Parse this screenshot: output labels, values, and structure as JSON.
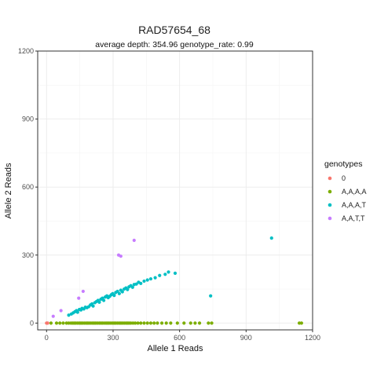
{
  "chart_data": {
    "type": "scatter",
    "title": "RAD57654_68",
    "subtitle": "average depth:  354.96  genotype_rate:  0.99",
    "xlabel": "Allele 1 Reads",
    "ylabel": "Allele 2 Reads",
    "xlim": [
      -40,
      1200
    ],
    "ylim": [
      -30,
      1200
    ],
    "xticks": [
      0,
      300,
      600,
      900,
      1200
    ],
    "yticks": [
      0,
      300,
      600,
      900,
      1200
    ],
    "grid": true,
    "legend": {
      "title": "genotypes",
      "position": "right"
    },
    "series": [
      {
        "name": "0",
        "color": "#F8766D",
        "points": [
          [
            0,
            0
          ],
          [
            5,
            0
          ]
        ]
      },
      {
        "name": "A,A,A,A",
        "color": "#7CAE00",
        "points": [
          [
            20,
            0
          ],
          [
            45,
            0
          ],
          [
            60,
            0
          ],
          [
            75,
            0
          ],
          [
            90,
            0
          ],
          [
            100,
            0
          ],
          [
            110,
            0
          ],
          [
            118,
            0
          ],
          [
            125,
            0
          ],
          [
            132,
            0
          ],
          [
            140,
            0
          ],
          [
            148,
            0
          ],
          [
            155,
            0
          ],
          [
            162,
            0
          ],
          [
            170,
            0
          ],
          [
            178,
            0
          ],
          [
            185,
            0
          ],
          [
            192,
            0
          ],
          [
            200,
            0
          ],
          [
            208,
            0
          ],
          [
            215,
            0
          ],
          [
            222,
            0
          ],
          [
            230,
            0
          ],
          [
            238,
            0
          ],
          [
            245,
            0
          ],
          [
            252,
            0
          ],
          [
            260,
            0
          ],
          [
            268,
            0
          ],
          [
            275,
            0
          ],
          [
            282,
            0
          ],
          [
            290,
            0
          ],
          [
            298,
            0
          ],
          [
            305,
            0
          ],
          [
            312,
            0
          ],
          [
            320,
            0
          ],
          [
            328,
            0
          ],
          [
            335,
            0
          ],
          [
            342,
            0
          ],
          [
            350,
            0
          ],
          [
            358,
            0
          ],
          [
            365,
            0
          ],
          [
            372,
            0
          ],
          [
            380,
            0
          ],
          [
            390,
            0
          ],
          [
            400,
            0
          ],
          [
            412,
            0
          ],
          [
            425,
            0
          ],
          [
            440,
            0
          ],
          [
            455,
            0
          ],
          [
            470,
            0
          ],
          [
            485,
            0
          ],
          [
            500,
            0
          ],
          [
            520,
            0
          ],
          [
            540,
            0
          ],
          [
            560,
            0
          ],
          [
            590,
            0
          ],
          [
            620,
            0
          ],
          [
            650,
            0
          ],
          [
            670,
            0
          ],
          [
            690,
            0
          ],
          [
            730,
            0
          ],
          [
            745,
            0
          ],
          [
            1140,
            0
          ],
          [
            1150,
            0
          ]
        ]
      },
      {
        "name": "A,A,A,T",
        "color": "#00BFC4",
        "points": [
          [
            100,
            35
          ],
          [
            112,
            40
          ],
          [
            120,
            45
          ],
          [
            128,
            50
          ],
          [
            135,
            55
          ],
          [
            140,
            48
          ],
          [
            148,
            60
          ],
          [
            155,
            58
          ],
          [
            160,
            65
          ],
          [
            168,
            62
          ],
          [
            175,
            70
          ],
          [
            182,
            68
          ],
          [
            190,
            72
          ],
          [
            198,
            80
          ],
          [
            205,
            85
          ],
          [
            210,
            75
          ],
          [
            218,
            90
          ],
          [
            225,
            95
          ],
          [
            232,
            100
          ],
          [
            238,
            92
          ],
          [
            245,
            105
          ],
          [
            252,
            110
          ],
          [
            258,
            100
          ],
          [
            265,
            115
          ],
          [
            272,
            120
          ],
          [
            278,
            112
          ],
          [
            285,
            118
          ],
          [
            292,
            125
          ],
          [
            298,
            130
          ],
          [
            305,
            122
          ],
          [
            312,
            135
          ],
          [
            320,
            140
          ],
          [
            328,
            130
          ],
          [
            335,
            145
          ],
          [
            342,
            138
          ],
          [
            350,
            150
          ],
          [
            358,
            155
          ],
          [
            365,
            148
          ],
          [
            372,
            160
          ],
          [
            380,
            165
          ],
          [
            388,
            158
          ],
          [
            395,
            170
          ],
          [
            405,
            172
          ],
          [
            415,
            180
          ],
          [
            425,
            175
          ],
          [
            440,
            185
          ],
          [
            455,
            190
          ],
          [
            470,
            195
          ],
          [
            490,
            200
          ],
          [
            510,
            210
          ],
          [
            535,
            215
          ],
          [
            550,
            225
          ],
          [
            580,
            220
          ],
          [
            740,
            120
          ],
          [
            1015,
            375
          ]
        ]
      },
      {
        "name": "A,A,T,T",
        "color": "#C77CFF",
        "points": [
          [
            30,
            30
          ],
          [
            65,
            55
          ],
          [
            145,
            110
          ],
          [
            165,
            140
          ],
          [
            325,
            300
          ],
          [
            335,
            295
          ],
          [
            395,
            365
          ]
        ]
      }
    ]
  }
}
